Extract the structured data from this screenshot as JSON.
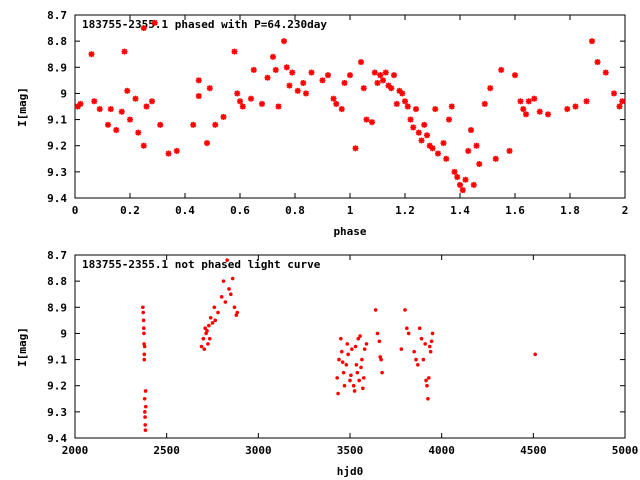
{
  "chart_data": [
    {
      "type": "scatter",
      "title": "183755-2355.1 phased with P=64.230day",
      "xlabel": "phase",
      "ylabel": "I[mag]",
      "xlim": [
        0,
        2
      ],
      "ylim": [
        9.4,
        8.7
      ],
      "y_inverted": true,
      "grid": false,
      "marker": "asterisk",
      "color": "#ff0000",
      "x_ticks": [
        "0",
        "0.2",
        "0.4",
        "0.6",
        "0.8",
        "1",
        "1.2",
        "1.4",
        "1.6",
        "1.8",
        "2"
      ],
      "x_tick_values": [
        0,
        0.2,
        0.4,
        0.6,
        0.8,
        1,
        1.2,
        1.4,
        1.6,
        1.8,
        2
      ],
      "y_ticks": [
        "8.7",
        "8.8",
        "8.9",
        "9",
        "9.1",
        "9.2",
        "9.3",
        "9.4"
      ],
      "y_tick_values": [
        8.7,
        8.8,
        8.9,
        9.0,
        9.1,
        9.2,
        9.3,
        9.4
      ],
      "points": [
        [
          0.01,
          9.05
        ],
        [
          0.02,
          9.04
        ],
        [
          0.06,
          8.85
        ],
        [
          0.07,
          9.03
        ],
        [
          0.09,
          9.06
        ],
        [
          0.12,
          9.12
        ],
        [
          0.13,
          9.06
        ],
        [
          0.15,
          9.14
        ],
        [
          0.17,
          9.07
        ],
        [
          0.18,
          8.84
        ],
        [
          0.19,
          8.99
        ],
        [
          0.2,
          9.1
        ],
        [
          0.22,
          9.02
        ],
        [
          0.23,
          9.15
        ],
        [
          0.25,
          9.2
        ],
        [
          0.25,
          8.75
        ],
        [
          0.26,
          9.05
        ],
        [
          0.28,
          9.03
        ],
        [
          0.29,
          8.73
        ],
        [
          0.31,
          9.12
        ],
        [
          0.34,
          9.23
        ],
        [
          0.37,
          9.22
        ],
        [
          0.43,
          9.12
        ],
        [
          0.45,
          9.01
        ],
        [
          0.45,
          8.95
        ],
        [
          0.48,
          9.19
        ],
        [
          0.49,
          8.98
        ],
        [
          0.51,
          9.12
        ],
        [
          0.54,
          9.09
        ],
        [
          0.58,
          8.84
        ],
        [
          0.59,
          9.0
        ],
        [
          0.6,
          9.03
        ],
        [
          0.61,
          9.05
        ],
        [
          0.64,
          9.02
        ],
        [
          0.65,
          8.91
        ],
        [
          0.68,
          9.04
        ],
        [
          0.7,
          8.94
        ],
        [
          0.72,
          8.86
        ],
        [
          0.73,
          8.91
        ],
        [
          0.74,
          9.05
        ],
        [
          0.76,
          8.8
        ],
        [
          0.77,
          8.9
        ],
        [
          0.78,
          8.97
        ],
        [
          0.79,
          8.92
        ],
        [
          0.81,
          8.99
        ],
        [
          0.83,
          8.96
        ],
        [
          0.84,
          9.0
        ],
        [
          0.86,
          8.92
        ],
        [
          0.9,
          8.95
        ],
        [
          0.92,
          8.93
        ],
        [
          0.94,
          9.02
        ],
        [
          0.95,
          9.04
        ],
        [
          0.97,
          9.06
        ],
        [
          0.98,
          8.96
        ],
        [
          1.0,
          8.93
        ],
        [
          1.02,
          9.21
        ],
        [
          1.04,
          8.88
        ],
        [
          1.05,
          8.98
        ],
        [
          1.06,
          9.1
        ],
        [
          1.08,
          9.11
        ],
        [
          1.09,
          8.92
        ],
        [
          1.1,
          8.96
        ],
        [
          1.11,
          8.93
        ],
        [
          1.12,
          8.95
        ],
        [
          1.13,
          8.92
        ],
        [
          1.14,
          8.97
        ],
        [
          1.15,
          8.98
        ],
        [
          1.16,
          8.93
        ],
        [
          1.17,
          9.04
        ],
        [
          1.18,
          8.99
        ],
        [
          1.19,
          9.0
        ],
        [
          1.2,
          9.03
        ],
        [
          1.21,
          9.05
        ],
        [
          1.22,
          9.1
        ],
        [
          1.23,
          9.13
        ],
        [
          1.24,
          9.06
        ],
        [
          1.25,
          9.15
        ],
        [
          1.26,
          9.18
        ],
        [
          1.27,
          9.12
        ],
        [
          1.28,
          9.16
        ],
        [
          1.29,
          9.2
        ],
        [
          1.3,
          9.21
        ],
        [
          1.31,
          9.06
        ],
        [
          1.32,
          9.23
        ],
        [
          1.34,
          9.19
        ],
        [
          1.35,
          9.25
        ],
        [
          1.36,
          9.1
        ],
        [
          1.37,
          9.05
        ],
        [
          1.38,
          9.3
        ],
        [
          1.39,
          9.32
        ],
        [
          1.4,
          9.35
        ],
        [
          1.41,
          9.37
        ],
        [
          1.42,
          9.33
        ],
        [
          1.43,
          9.22
        ],
        [
          1.44,
          9.14
        ],
        [
          1.46,
          9.2
        ],
        [
          1.45,
          9.35
        ],
        [
          1.47,
          9.27
        ],
        [
          1.49,
          9.04
        ],
        [
          1.51,
          8.98
        ],
        [
          1.53,
          9.25
        ],
        [
          1.55,
          8.91
        ],
        [
          1.58,
          9.22
        ],
        [
          1.6,
          8.93
        ],
        [
          1.62,
          9.03
        ],
        [
          1.63,
          9.06
        ],
        [
          1.64,
          9.08
        ],
        [
          1.65,
          9.03
        ],
        [
          1.67,
          9.02
        ],
        [
          1.69,
          9.07
        ],
        [
          1.72,
          9.08
        ],
        [
          1.79,
          9.06
        ],
        [
          1.82,
          9.05
        ],
        [
          1.86,
          9.03
        ],
        [
          1.88,
          8.8
        ],
        [
          1.9,
          8.88
        ],
        [
          1.93,
          8.92
        ],
        [
          1.96,
          9.0
        ],
        [
          1.98,
          9.05
        ],
        [
          1.99,
          9.03
        ]
      ]
    },
    {
      "type": "scatter",
      "title": "183755-2355.1 not phased light curve",
      "xlabel": "hjd0",
      "ylabel": "I[mag]",
      "xlim": [
        2000,
        5000
      ],
      "ylim": [
        9.4,
        8.7
      ],
      "y_inverted": true,
      "grid": false,
      "marker": "dot",
      "color": "#ff0000",
      "x_ticks": [
        "2000",
        "2500",
        "3000",
        "3500",
        "4000",
        "4500",
        "5000"
      ],
      "x_tick_values": [
        2000,
        2500,
        3000,
        3500,
        4000,
        4500,
        5000
      ],
      "y_ticks": [
        "8.7",
        "8.8",
        "8.9",
        "9",
        "9.1",
        "9.2",
        "9.3",
        "9.4"
      ],
      "y_tick_values": [
        8.7,
        8.8,
        8.9,
        9.0,
        9.1,
        9.2,
        9.3,
        9.4
      ],
      "points": [
        [
          2370,
          8.9
        ],
        [
          2372,
          8.92
        ],
        [
          2374,
          8.95
        ],
        [
          2375,
          8.98
        ],
        [
          2376,
          9.0
        ],
        [
          2377,
          9.04
        ],
        [
          2378,
          9.08
        ],
        [
          2378,
          9.1
        ],
        [
          2380,
          9.25
        ],
        [
          2381,
          9.3
        ],
        [
          2382,
          9.32
        ],
        [
          2383,
          9.35
        ],
        [
          2384,
          9.37
        ],
        [
          2385,
          9.22
        ],
        [
          2386,
          9.28
        ],
        [
          2380,
          9.05
        ],
        [
          2690,
          9.05
        ],
        [
          2700,
          9.02
        ],
        [
          2705,
          9.06
        ],
        [
          2710,
          8.98
        ],
        [
          2715,
          9.0
        ],
        [
          2720,
          8.99
        ],
        [
          2725,
          9.04
        ],
        [
          2730,
          8.97
        ],
        [
          2735,
          9.02
        ],
        [
          2740,
          8.94
        ],
        [
          2750,
          8.96
        ],
        [
          2760,
          8.9
        ],
        [
          2765,
          8.95
        ],
        [
          2780,
          8.92
        ],
        [
          2800,
          8.86
        ],
        [
          2810,
          8.8
        ],
        [
          2820,
          8.88
        ],
        [
          2830,
          8.72
        ],
        [
          2840,
          8.83
        ],
        [
          2850,
          8.85
        ],
        [
          2860,
          8.79
        ],
        [
          2870,
          8.9
        ],
        [
          2880,
          8.93
        ],
        [
          2885,
          8.92
        ],
        [
          3430,
          9.17
        ],
        [
          3435,
          9.23
        ],
        [
          3440,
          9.1
        ],
        [
          3450,
          9.02
        ],
        [
          3455,
          9.07
        ],
        [
          3460,
          9.11
        ],
        [
          3465,
          9.15
        ],
        [
          3470,
          9.2
        ],
        [
          3480,
          9.12
        ],
        [
          3485,
          9.04
        ],
        [
          3490,
          9.08
        ],
        [
          3500,
          9.18
        ],
        [
          3505,
          9.16
        ],
        [
          3510,
          9.06
        ],
        [
          3520,
          9.2
        ],
        [
          3525,
          9.22
        ],
        [
          3530,
          9.05
        ],
        [
          3535,
          9.12
        ],
        [
          3540,
          9.15
        ],
        [
          3545,
          9.02
        ],
        [
          3550,
          9.18
        ],
        [
          3555,
          9.01
        ],
        [
          3560,
          9.13
        ],
        [
          3565,
          9.1
        ],
        [
          3570,
          9.21
        ],
        [
          3575,
          9.17
        ],
        [
          3580,
          9.06
        ],
        [
          3590,
          9.04
        ],
        [
          3640,
          8.91
        ],
        [
          3650,
          9.0
        ],
        [
          3660,
          9.03
        ],
        [
          3665,
          9.09
        ],
        [
          3670,
          9.1
        ],
        [
          3675,
          9.15
        ],
        [
          3780,
          9.06
        ],
        [
          3800,
          8.91
        ],
        [
          3810,
          8.98
        ],
        [
          3820,
          9.0
        ],
        [
          3850,
          9.07
        ],
        [
          3860,
          9.1
        ],
        [
          3870,
          9.12
        ],
        [
          3880,
          8.98
        ],
        [
          3890,
          9.02
        ],
        [
          3900,
          9.1
        ],
        [
          3910,
          9.04
        ],
        [
          3915,
          9.18
        ],
        [
          3920,
          9.2
        ],
        [
          3925,
          9.25
        ],
        [
          3930,
          9.17
        ],
        [
          3935,
          9.05
        ],
        [
          3940,
          9.07
        ],
        [
          3945,
          9.03
        ],
        [
          3950,
          9.0
        ],
        [
          4510,
          9.08
        ]
      ]
    }
  ]
}
